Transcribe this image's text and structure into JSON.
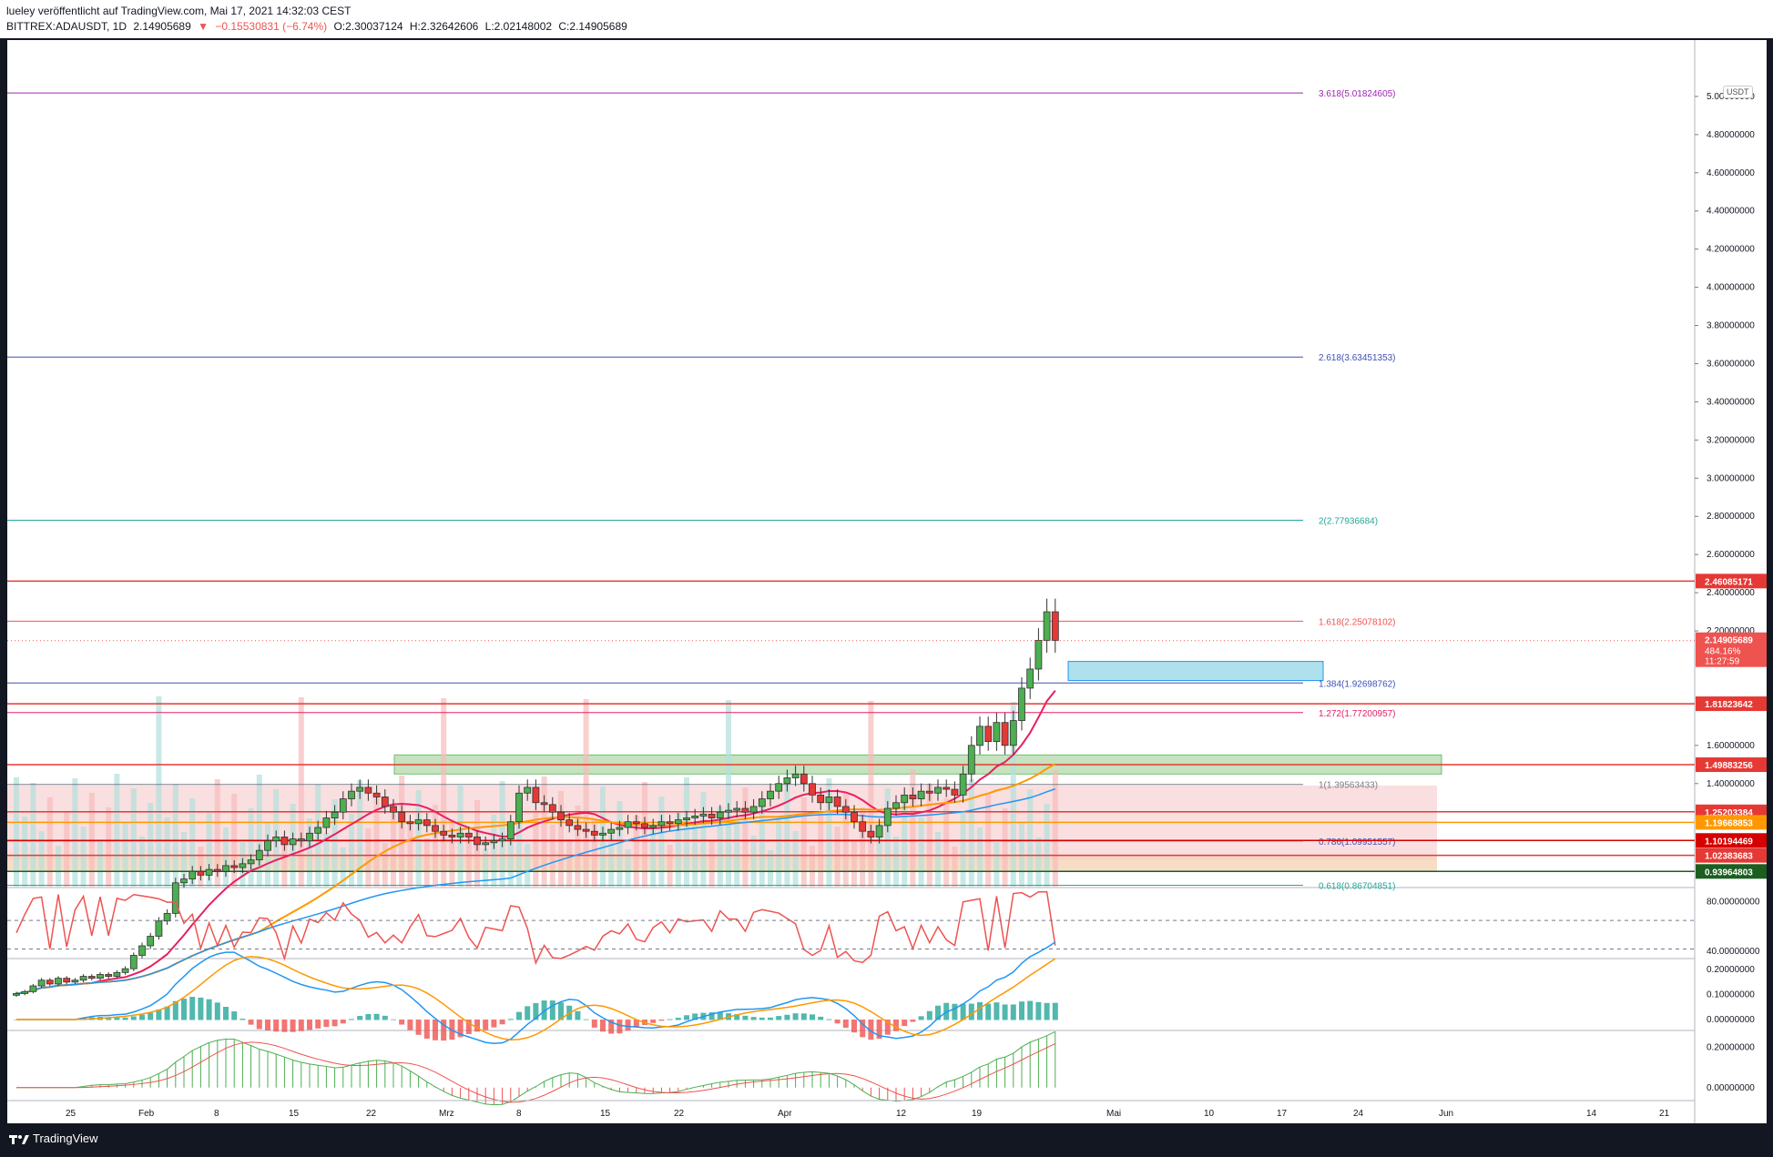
{
  "header": {
    "publisher": "lueley veröffentlicht auf TradingView.com, Mai 17, 2021 14:32:03 CEST",
    "symbol": "BITTREX:ADAUSDT, 1D",
    "last": "2.14905689",
    "change": "−0.15530831 (−6.74%)",
    "open": "O:2.30037124",
    "high": "H:2.32642606",
    "low": "L:2.02148002",
    "close": "C:2.14905689"
  },
  "footer": {
    "brand": "TradingView"
  },
  "currency_badge": "USDT",
  "colors": {
    "up": "#26a69a",
    "down": "#ef5350",
    "rsi": "#ef5350",
    "macd": "#2196f3",
    "signal": "#ff9800"
  },
  "chart_data": {
    "type": "candlestick",
    "x_ticks": [
      "25",
      "Feb",
      "8",
      "15",
      "22",
      "Mrz",
      "8",
      "15",
      "22",
      "Apr",
      "12",
      "19",
      "Mai",
      "10",
      "17",
      "24",
      "Jun",
      "14",
      "21"
    ],
    "y_ticks": [
      "5.00000000",
      "4.80000000",
      "4.60000000",
      "4.40000000",
      "4.20000000",
      "4.00000000",
      "3.80000000",
      "3.60000000",
      "3.40000000",
      "3.20000000",
      "3.00000000",
      "2.80000000",
      "2.60000000",
      "2.40000000",
      "2.20000000",
      "1.60000000",
      "1.40000000"
    ],
    "y_range": [
      0.86,
      5.2
    ],
    "closes": [
      0.3,
      0.31,
      0.34,
      0.37,
      0.35,
      0.38,
      0.36,
      0.37,
      0.39,
      0.38,
      0.4,
      0.39,
      0.41,
      0.43,
      0.5,
      0.55,
      0.6,
      0.68,
      0.72,
      0.88,
      0.9,
      0.94,
      0.92,
      0.95,
      0.94,
      0.97,
      0.96,
      0.98,
      1.0,
      1.05,
      1.1,
      1.12,
      1.08,
      1.11,
      1.1,
      1.14,
      1.17,
      1.22,
      1.25,
      1.32,
      1.36,
      1.38,
      1.35,
      1.33,
      1.28,
      1.25,
      1.2,
      1.19,
      1.21,
      1.18,
      1.15,
      1.13,
      1.12,
      1.14,
      1.12,
      1.08,
      1.09,
      1.1,
      1.11,
      1.2,
      1.35,
      1.38,
      1.3,
      1.29,
      1.25,
      1.21,
      1.18,
      1.16,
      1.15,
      1.13,
      1.14,
      1.16,
      1.17,
      1.2,
      1.19,
      1.17,
      1.18,
      1.2,
      1.19,
      1.21,
      1.22,
      1.23,
      1.24,
      1.22,
      1.25,
      1.26,
      1.27,
      1.25,
      1.28,
      1.32,
      1.36,
      1.4,
      1.43,
      1.45,
      1.4,
      1.34,
      1.3,
      1.33,
      1.28,
      1.25,
      1.2,
      1.15,
      1.12,
      1.18,
      1.27,
      1.3,
      1.34,
      1.32,
      1.36,
      1.35,
      1.38,
      1.37,
      1.34,
      1.45,
      1.6,
      1.7,
      1.62,
      1.72,
      1.6,
      1.73,
      1.9,
      2.0,
      2.15,
      2.3,
      2.15
    ],
    "fib_levels": [
      {
        "label": "3.618(5.01824605)",
        "value": 5.01824605,
        "color": "#9c27b0"
      },
      {
        "label": "2.618(3.63451353)",
        "value": 3.63451353,
        "color": "#3f51b5"
      },
      {
        "label": "2(2.77936684)",
        "value": 2.77936684,
        "color": "#26a69a"
      },
      {
        "label": "1.618(2.25078102)",
        "value": 2.25078102,
        "color": "#ef5350"
      },
      {
        "label": "1.384(1.92698762)",
        "value": 1.92698762,
        "color": "#3f51b5"
      },
      {
        "label": "1.272(1.77200957)",
        "value": 1.77200957,
        "color": "#e91e63"
      },
      {
        "label": "1(1.39563433)",
        "value": 1.39563433,
        "color": "#787b86"
      },
      {
        "label": "0.786(1.09951557)",
        "value": 1.09951557,
        "color": "#3f51b5"
      },
      {
        "label": "0.618(0.86704851)",
        "value": 0.86704851,
        "color": "#26a69a"
      }
    ],
    "horizontal_levels": [
      {
        "label": "2.46085171",
        "value": 2.46085171,
        "color": "#e53935"
      },
      {
        "label": "1.81823642",
        "value": 1.81823642,
        "color": "#e53935"
      },
      {
        "label": "1.49883256",
        "value": 1.49883256,
        "color": "#e53935"
      },
      {
        "label": "1.25203384",
        "value": 1.25203384,
        "color": "#e53935"
      },
      {
        "label": "1.19668853",
        "value": 1.19668853,
        "color": "#ff9800"
      },
      {
        "label": "1.10194469",
        "value": 1.10194469,
        "color": "#d50000"
      },
      {
        "label": "1.02383683",
        "value": 1.02383683,
        "color": "#e53935"
      },
      {
        "label": "0.93964803",
        "value": 0.93964803,
        "color": "#1b5e20"
      }
    ],
    "price_tag": {
      "value": 2.14905689,
      "label": "2.14905689",
      "pct": "484.16%",
      "countdown": "11:27:59"
    },
    "rsi": {
      "ticks": [
        "80.00000000",
        "40.00000000"
      ],
      "range": [
        35,
        90
      ]
    },
    "macd": {
      "ticks": [
        "0.20000000",
        "0.10000000",
        "0.00000000"
      ],
      "range": [
        -0.04,
        0.24
      ]
    },
    "osc": {
      "ticks": [
        "0.20000000",
        "0.00000000"
      ],
      "range": [
        -0.06,
        0.28
      ]
    }
  }
}
